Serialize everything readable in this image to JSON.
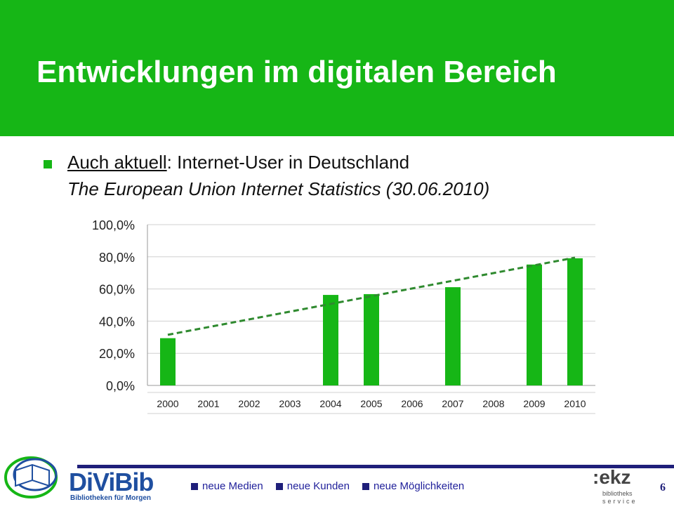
{
  "slide": {
    "title": "Entwicklungen im digitalen Bereich",
    "bullet_underlined": "Auch aktuell",
    "bullet_rest": ": Internet-User in Deutschland",
    "bullet_source": "The European Union Internet Statistics (30.06.2010)",
    "page_number": "6"
  },
  "footer": {
    "nav": [
      "neue Medien",
      "neue Kunden",
      "neue Möglichkeiten"
    ],
    "logo_left": {
      "brand": "DiViBib",
      "tagline": "Bibliotheken für Morgen"
    },
    "logo_right": {
      "brand": ":ekz",
      "sub1": "bibliotheks",
      "sub2": "service"
    }
  },
  "colors": {
    "green": "#16b616",
    "trend": "#2f8a2f",
    "navy": "#1f1f7a"
  },
  "chart_data": {
    "type": "bar",
    "categories": [
      "2000",
      "2001",
      "2002",
      "2003",
      "2004",
      "2005",
      "2006",
      "2007",
      "2008",
      "2009",
      "2010"
    ],
    "values": [
      29.4,
      null,
      null,
      null,
      56.3,
      56.8,
      null,
      61.1,
      null,
      75.2,
      79.1
    ],
    "ytick_labels": [
      "0,0%",
      "20,0%",
      "40,0%",
      "60,0%",
      "80,0%",
      "100,0%"
    ],
    "ylim": [
      0,
      100
    ],
    "trendline": {
      "type": "linear",
      "start": [
        2000,
        31.5
      ],
      "end": [
        2010,
        79.5
      ],
      "style": "dashed"
    },
    "grid": true,
    "legend": "none"
  }
}
